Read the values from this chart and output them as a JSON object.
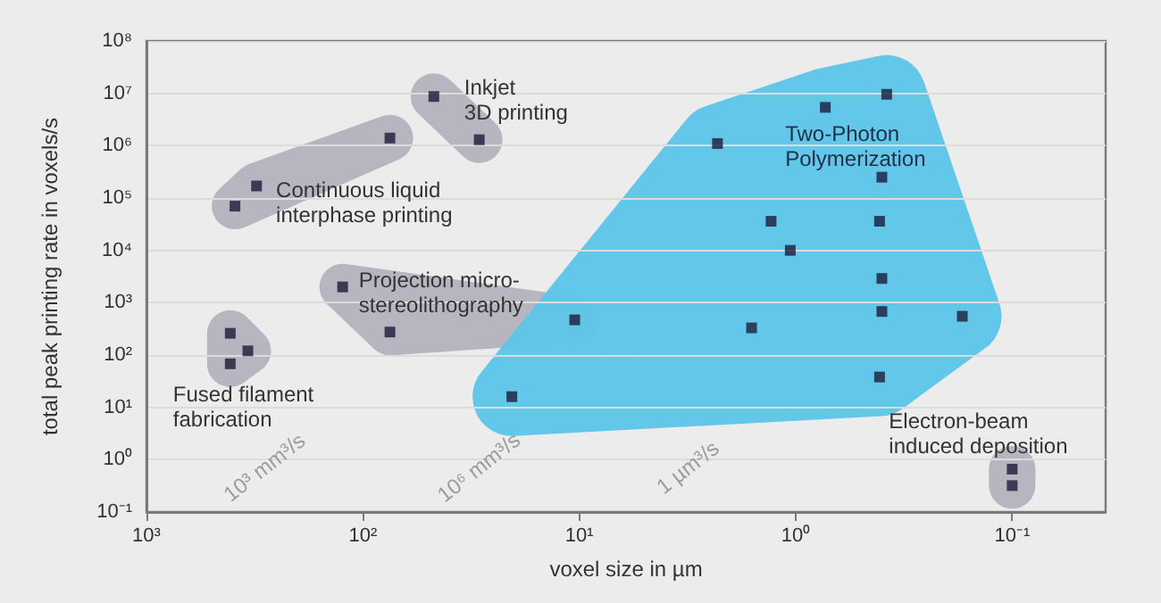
{
  "chart_data": {
    "type": "scatter",
    "xlabel": "voxel size in µm",
    "ylabel": "total peak printing rate in voxels/s",
    "xlim": [
      1000,
      0.037
    ],
    "ylim": [
      0.1,
      100000000
    ],
    "log": "xy",
    "grid": "y",
    "marker": "square",
    "xticks": [
      {
        "value": 1000,
        "label": "10³"
      },
      {
        "value": 100,
        "label": "10²"
      },
      {
        "value": 10,
        "label": "10¹"
      },
      {
        "value": 1,
        "label": "10⁰"
      },
      {
        "value": 0.1,
        "label": "10⁻¹"
      }
    ],
    "yticks": [
      {
        "value": 0.1,
        "label": "10⁻¹"
      },
      {
        "value": 1,
        "label": "10⁰"
      },
      {
        "value": 10,
        "label": "10¹"
      },
      {
        "value": 100,
        "label": "10²"
      },
      {
        "value": 1000,
        "label": "10³"
      },
      {
        "value": 10000,
        "label": "10⁴"
      },
      {
        "value": 100000,
        "label": "10⁵"
      },
      {
        "value": 1000000,
        "label": "10⁶"
      },
      {
        "value": 10000000,
        "label": "10⁷"
      },
      {
        "value": 100000000,
        "label": "10⁸"
      }
    ],
    "series": [
      {
        "color": "#1c1b3a",
        "x": [
          47,
          29
        ],
        "values": [
          8700000,
          1300000
        ]
      },
      {
        "color": "#1c1b3a",
        "x": [
          75,
          310,
          390
        ],
        "values": [
          1400000,
          170000,
          70000
        ]
      },
      {
        "color": "#1c1b3a",
        "x": [
          124,
          75,
          10.5
        ],
        "values": [
          2000,
          275,
          470
        ]
      },
      {
        "color": "#1c1b3a",
        "x": [
          410,
          340,
          410
        ],
        "values": [
          260,
          120,
          68
        ]
      },
      {
        "color": "#1c1b3a",
        "x": [
          20.5,
          0.38,
          0.73,
          2.3,
          0.4,
          1.3,
          0.41,
          1.06,
          0.4,
          0.4,
          0.17,
          1.6,
          0.41
        ],
        "values": [
          16,
          9600000,
          5400000,
          1100000,
          250000,
          36000,
          36000,
          10000,
          2900,
          680,
          550,
          330,
          38
        ]
      },
      {
        "color": "#1c1b3a",
        "x": [
          0.1,
          0.1
        ],
        "values": [
          0.66,
          0.32
        ]
      }
    ],
    "annotations": [
      "Inkjet\n3D printing",
      "Continuous liquid\ninterphase printing",
      "Projection micro-\nstereolithography",
      "Fused filament\nfabrication",
      "Two-Photon\nPolymerization",
      "Electron-beam\ninduced deposition",
      "10³ mm³/s",
      "10⁶ mm³/s",
      "1 µm³/s"
    ]
  }
}
